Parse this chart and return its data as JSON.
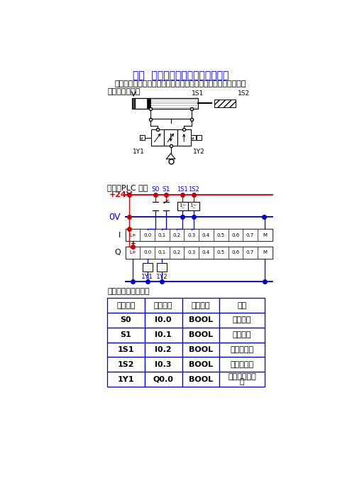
{
  "title": "例六  双作用气缸连续往复运动控制",
  "subtitle": "按启动按鈕双作用气缸连续往复运动，按停止按鈕，停止运动。",
  "section1": "（一）气控回路",
  "section2": "（二）PLC 接线",
  "section3": "（三）定义符号地址",
  "table_headers": [
    "符号地址",
    "绝对地址",
    "类据类型",
    "说明"
  ],
  "table_rows": [
    [
      "S0",
      "I0.0",
      "BOOL",
      "启动按鈕"
    ],
    [
      "S1",
      "I0.1",
      "BOOL",
      "停止按鈕"
    ],
    [
      "1S1",
      "I0.2",
      "BOOL",
      "位置传感器"
    ],
    [
      "1S2",
      "I0.3",
      "BOOL",
      "位置传感器"
    ],
    [
      "1Y1",
      "Q0.0",
      "BOOL",
      "换向阀电磁线\n圈"
    ]
  ],
  "blue": "#0000CC",
  "red": "#CC0000",
  "black": "#000000"
}
